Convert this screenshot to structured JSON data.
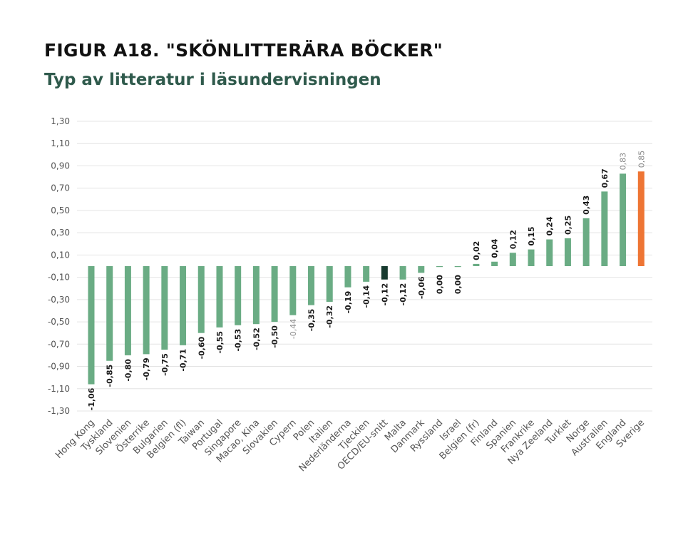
{
  "header": {
    "title": "FIGUR A18. \"SKÖNLITTERÄRA BÖCKER\"",
    "subtitle": "Typ av litteratur i läsundervisningen"
  },
  "chart_data": {
    "type": "bar",
    "title": "FIGUR A18. \"SKÖNLITTERÄRA BÖCKER\"",
    "subtitle": "Typ av litteratur i läsundervisningen",
    "xlabel": "",
    "ylabel": "",
    "ylim": [
      -1.3,
      1.3
    ],
    "yticks": [
      "1,30",
      "1,10",
      "0,90",
      "0,70",
      "0,50",
      "0,30",
      "0,10",
      "-0,10",
      "-0,30",
      "-0,50",
      "-0,70",
      "-0,90",
      "-1,10",
      "-1,30"
    ],
    "ytick_values": [
      1.3,
      1.1,
      0.9,
      0.7,
      0.5,
      0.3,
      0.1,
      -0.1,
      -0.3,
      -0.5,
      -0.7,
      -0.9,
      -1.1,
      -1.3
    ],
    "grid": true,
    "colors": {
      "default": "#6aac84",
      "oecd": "#173a2f",
      "sverige": "#ee7534"
    },
    "categories": [
      "Hong Kong",
      "Tyskland",
      "Slovenien",
      "Österrike",
      "Bulgarien",
      "Belgien (fl)",
      "Taiwan",
      "Portugal",
      "Singapore",
      "Macao, Kina",
      "Slovakien",
      "Cypern",
      "Polen",
      "Italien",
      "Nederländerna",
      "Tjeckien",
      "OECD/EU-snitt",
      "Malta",
      "Danmark",
      "Ryssland",
      "Israel",
      "Belgien (fr)",
      "Finland",
      "Spanien",
      "Frankrike",
      "Nya Zeeland",
      "Turkiet",
      "Norge",
      "Australien",
      "England",
      "Sverige"
    ],
    "values": [
      -1.06,
      -0.85,
      -0.8,
      -0.79,
      -0.75,
      -0.71,
      -0.6,
      -0.55,
      -0.53,
      -0.52,
      -0.5,
      -0.44,
      -0.35,
      -0.32,
      -0.19,
      -0.14,
      -0.12,
      -0.12,
      -0.06,
      0.0,
      0.0,
      0.02,
      0.04,
      0.12,
      0.15,
      0.24,
      0.25,
      0.43,
      0.67,
      0.83,
      0.85
    ],
    "value_labels": [
      "-1,06",
      "-0,85",
      "-0,80",
      "-0,79",
      "-0,75",
      "-0,71",
      "-0,60",
      "-0,55",
      "-0,53",
      "-0,52",
      "-0,50",
      "-0,44",
      "-0,35",
      "-0,32",
      "-0,19",
      "-0,14",
      "-0,12",
      "-0,12",
      "-0,06",
      "0,00",
      "0,00",
      "0,02",
      "0,04",
      "0,12",
      "0,15",
      "0,24",
      "0,25",
      "0,43",
      "0,67",
      "0,83",
      "0,85"
    ],
    "highlight": {
      "OECD/EU-snitt": "oecd",
      "Sverige": "sverige"
    },
    "light_labels": [
      "Cypern",
      "England",
      "Sverige"
    ]
  }
}
